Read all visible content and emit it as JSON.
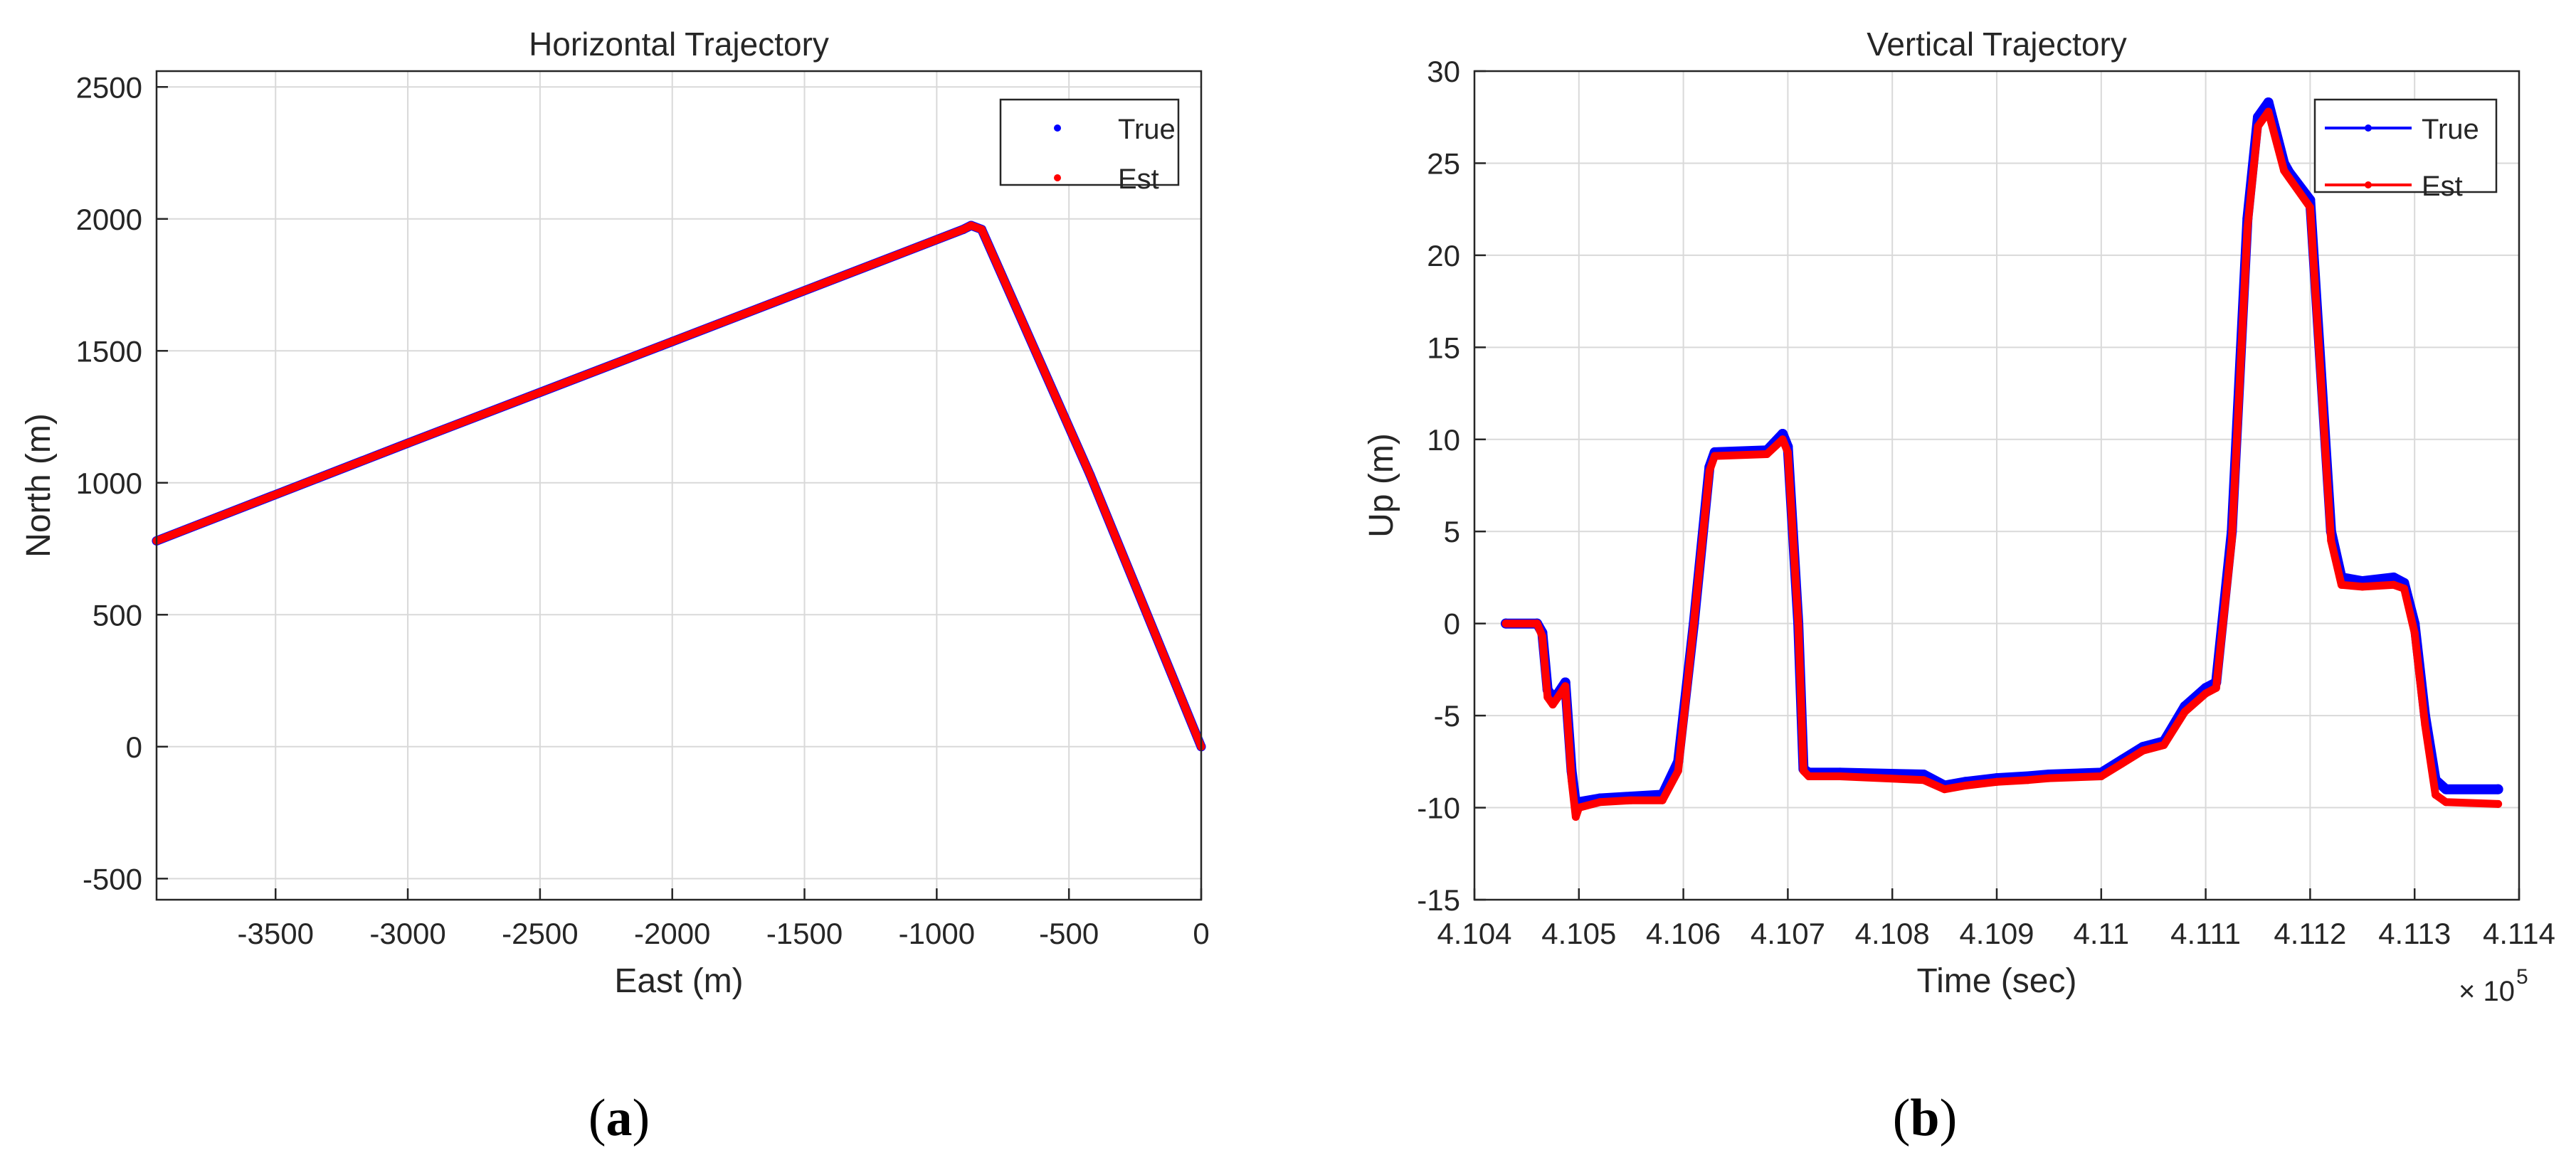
{
  "panels": {
    "a": {
      "open": "(",
      "letter": "a",
      "close": ")"
    },
    "b": {
      "open": "(",
      "letter": "b",
      "close": ")"
    }
  },
  "colors": {
    "true": "#0000ff",
    "est": "#ff0000",
    "grid": "#d9d9d9",
    "axis": "#262626"
  },
  "chart_data": [
    {
      "type": "scatter",
      "title": "Horizontal Trajectory",
      "xlabel": "East (m)",
      "ylabel": "North (m)",
      "xlim": [
        -3950,
        0
      ],
      "ylim": [
        -580,
        2560
      ],
      "xticks": [
        -3500,
        -3000,
        -2500,
        -2000,
        -1500,
        -1000,
        -500,
        0
      ],
      "yticks": [
        -500,
        0,
        500,
        1000,
        1500,
        2000,
        2500
      ],
      "grid": true,
      "legend_position": "top-right",
      "legend_marker": "point",
      "series": [
        {
          "name": "True",
          "color": "#0000ff",
          "points": [
            [
              0,
              0
            ],
            [
              -420,
              1030
            ],
            [
              -830,
              1960
            ],
            [
              -870,
              1975
            ],
            [
              -900,
              1960
            ],
            [
              -2000,
              1535
            ],
            [
              -3000,
              1150
            ],
            [
              -3950,
              780
            ]
          ]
        },
        {
          "name": "Est",
          "color": "#ff0000",
          "points": [
            [
              0,
              0
            ],
            [
              -420,
              1030
            ],
            [
              -830,
              1960
            ],
            [
              -870,
              1975
            ],
            [
              -900,
              1960
            ],
            [
              -2000,
              1535
            ],
            [
              -3000,
              1150
            ],
            [
              -3950,
              780
            ]
          ]
        }
      ]
    },
    {
      "type": "line",
      "title": "Vertical Trajectory",
      "xlabel": "Time (sec)",
      "ylabel": "Up (m)",
      "x_multiplier": "× 10",
      "x_multiplier_exp": "5",
      "xlim": [
        4.104,
        4.114
      ],
      "ylim": [
        -15,
        30
      ],
      "xticks": [
        4.104,
        4.105,
        4.106,
        4.107,
        4.108,
        4.109,
        4.11,
        4.111,
        4.112,
        4.113,
        4.114
      ],
      "xticklabels": [
        "4.104",
        "4.105",
        "4.106",
        "4.107",
        "4.108",
        "4.109",
        "4.11",
        "4.111",
        "4.112",
        "4.113",
        "4.114"
      ],
      "yticks": [
        -15,
        -10,
        -5,
        0,
        5,
        10,
        15,
        20,
        25,
        30
      ],
      "grid": true,
      "legend_position": "top-right",
      "legend_marker": "line-with-point",
      "series": [
        {
          "name": "True",
          "color": "#0000ff",
          "points": [
            [
              4.1043,
              0
            ],
            [
              4.1046,
              0
            ],
            [
              4.10465,
              -0.5
            ],
            [
              4.1047,
              -3.6
            ],
            [
              4.10475,
              -4
            ],
            [
              4.1048,
              -3.8
            ],
            [
              4.10487,
              -3.2
            ],
            [
              4.10493,
              -8
            ],
            [
              4.10497,
              -9.8
            ],
            [
              4.105,
              -9.7
            ],
            [
              4.1052,
              -9.5
            ],
            [
              4.1055,
              -9.4
            ],
            [
              4.1058,
              -9.3
            ],
            [
              4.10595,
              -7.5
            ],
            [
              4.1061,
              0
            ],
            [
              4.10625,
              8.5
            ],
            [
              4.1063,
              9.3
            ],
            [
              4.1068,
              9.4
            ],
            [
              4.10695,
              10.3
            ],
            [
              4.107,
              9.6
            ],
            [
              4.1071,
              0
            ],
            [
              4.10715,
              -7.9
            ],
            [
              4.1072,
              -8.1
            ],
            [
              4.1075,
              -8.1
            ],
            [
              4.1083,
              -8.2
            ],
            [
              4.1085,
              -8.8
            ],
            [
              4.1087,
              -8.6
            ],
            [
              4.109,
              -8.4
            ],
            [
              4.1093,
              -8.3
            ],
            [
              4.1095,
              -8.2
            ],
            [
              4.11,
              -8.1
            ],
            [
              4.1102,
              -7.4
            ],
            [
              4.1104,
              -6.7
            ],
            [
              4.1106,
              -6.4
            ],
            [
              4.1108,
              -4.5
            ],
            [
              4.111,
              -3.5
            ],
            [
              4.1111,
              -3.2
            ],
            [
              4.11125,
              5
            ],
            [
              4.1114,
              22
            ],
            [
              4.1115,
              27.5
            ],
            [
              4.1116,
              28.3
            ],
            [
              4.11175,
              25
            ],
            [
              4.1118,
              24.5
            ],
            [
              4.112,
              23
            ],
            [
              4.1122,
              5
            ],
            [
              4.1123,
              2.5
            ],
            [
              4.1125,
              2.3
            ],
            [
              4.1128,
              2.5
            ],
            [
              4.1129,
              2.2
            ],
            [
              4.113,
              0
            ],
            [
              4.1131,
              -5
            ],
            [
              4.1132,
              -8.5
            ],
            [
              4.1133,
              -9
            ],
            [
              4.1138,
              -9
            ]
          ]
        },
        {
          "name": "Est",
          "color": "#ff0000",
          "points": [
            [
              4.1043,
              0
            ],
            [
              4.1046,
              0
            ],
            [
              4.10465,
              -0.7
            ],
            [
              4.1047,
              -4.0
            ],
            [
              4.10475,
              -4.4
            ],
            [
              4.1048,
              -4.0
            ],
            [
              4.10487,
              -3.4
            ],
            [
              4.10493,
              -8.5
            ],
            [
              4.10497,
              -10.5
            ],
            [
              4.105,
              -10.0
            ],
            [
              4.1052,
              -9.7
            ],
            [
              4.1055,
              -9.6
            ],
            [
              4.1058,
              -9.6
            ],
            [
              4.10595,
              -8
            ],
            [
              4.1061,
              0
            ],
            [
              4.10625,
              8.3
            ],
            [
              4.1063,
              9.1
            ],
            [
              4.1068,
              9.2
            ],
            [
              4.10695,
              10.0
            ],
            [
              4.107,
              9.3
            ],
            [
              4.1071,
              0
            ],
            [
              4.10715,
              -8.0
            ],
            [
              4.1072,
              -8.3
            ],
            [
              4.1075,
              -8.3
            ],
            [
              4.1083,
              -8.5
            ],
            [
              4.1085,
              -9.0
            ],
            [
              4.1087,
              -8.8
            ],
            [
              4.109,
              -8.6
            ],
            [
              4.1093,
              -8.5
            ],
            [
              4.1095,
              -8.4
            ],
            [
              4.11,
              -8.3
            ],
            [
              4.1102,
              -7.6
            ],
            [
              4.1104,
              -6.9
            ],
            [
              4.1106,
              -6.6
            ],
            [
              4.1108,
              -4.8
            ],
            [
              4.111,
              -3.8
            ],
            [
              4.1111,
              -3.5
            ],
            [
              4.11125,
              4.5
            ],
            [
              4.1114,
              21.5
            ],
            [
              4.1115,
              27.0
            ],
            [
              4.1116,
              27.8
            ],
            [
              4.11175,
              24.6
            ],
            [
              4.1118,
              24.2
            ],
            [
              4.112,
              22.6
            ],
            [
              4.1122,
              4.5
            ],
            [
              4.1123,
              2.1
            ],
            [
              4.1125,
              2.0
            ],
            [
              4.1128,
              2.1
            ],
            [
              4.1129,
              1.9
            ],
            [
              4.113,
              -0.5
            ],
            [
              4.1131,
              -5.5
            ],
            [
              4.1132,
              -9.3
            ],
            [
              4.1133,
              -9.7
            ],
            [
              4.1138,
              -9.8
            ]
          ]
        }
      ]
    }
  ]
}
